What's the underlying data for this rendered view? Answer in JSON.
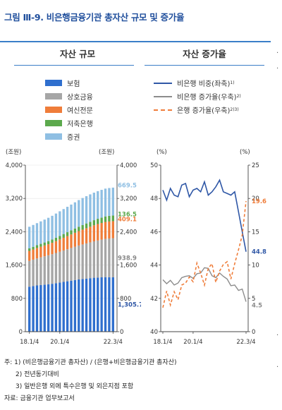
{
  "title": "그림 Ⅲ-9. 비은행금융기관 총자산 규모 및 증가율",
  "panels": {
    "left_title": "자산 규모",
    "right_title": "자산 증가율"
  },
  "legend_left": [
    {
      "label": "보험",
      "color": "#2f6fce"
    },
    {
      "label": "상호금융",
      "color": "#a6a6a6"
    },
    {
      "label": "여신전문",
      "color": "#ef7d3a"
    },
    {
      "label": "저축은행",
      "color": "#5ca94d"
    },
    {
      "label": "증권",
      "color": "#8fbfe3"
    }
  ],
  "legend_right": [
    {
      "label": "비은행 비중(좌축)",
      "sup": "1)",
      "color": "#2f57a6",
      "style": "solid"
    },
    {
      "label": "비은행 증가율(우축)",
      "sup": "2)",
      "color": "#8c8c8c",
      "style": "solid"
    },
    {
      "label": "은행 증가율(우축)",
      "sup": "2)3)",
      "color": "#ef7d3a",
      "style": "dashed"
    }
  ],
  "chart_data": [
    {
      "type": "bar",
      "stacked": true,
      "unit_left": "(조원)",
      "unit_right": "(조원)",
      "ylim": [
        0,
        4000
      ],
      "yticks": [
        "0",
        "800",
        "1,600",
        "2,400",
        "3,200",
        "4,000"
      ],
      "xticks": [
        "18.1/4",
        "20.1/4",
        "22.3/4"
      ],
      "series": [
        {
          "name": "보험",
          "values": [
            1080,
            1095,
            1110,
            1120,
            1130,
            1140,
            1150,
            1165,
            1180,
            1195,
            1210,
            1225,
            1240,
            1255,
            1265,
            1275,
            1285,
            1295,
            1300,
            1305,
            1310,
            1308,
            1305.7
          ]
        },
        {
          "name": "상호금융",
          "values": [
            620,
            635,
            650,
            665,
            680,
            695,
            710,
            725,
            740,
            755,
            770,
            785,
            800,
            815,
            830,
            845,
            860,
            875,
            890,
            905,
            920,
            930,
            938.9
          ]
        },
        {
          "name": "여신전문",
          "values": [
            240,
            245,
            250,
            255,
            260,
            265,
            275,
            285,
            295,
            305,
            315,
            325,
            335,
            345,
            355,
            365,
            375,
            385,
            395,
            400,
            405,
            408,
            409.1
          ]
        },
        {
          "name": "저축은행",
          "values": [
            60,
            63,
            66,
            69,
            72,
            75,
            78,
            82,
            86,
            90,
            94,
            98,
            102,
            106,
            110,
            114,
            118,
            122,
            126,
            130,
            133,
            135,
            136.5
          ]
        },
        {
          "name": "증권",
          "values": [
            520,
            525,
            530,
            540,
            550,
            560,
            570,
            580,
            590,
            600,
            610,
            620,
            630,
            640,
            650,
            655,
            660,
            662,
            664,
            666,
            668,
            669,
            669.5
          ]
        }
      ],
      "end_labels": [
        "669.5",
        "136.5",
        "409.1",
        "938.9",
        "1,305.7"
      ]
    },
    {
      "type": "line",
      "unit_left": "(%)",
      "unit_right": "(%)",
      "ylim_left": [
        40,
        50
      ],
      "ylim_right": [
        0,
        25
      ],
      "yticks_left": [
        "40",
        "42",
        "44",
        "46",
        "48",
        "50"
      ],
      "yticks_right": [
        "0",
        "5",
        "10",
        "15",
        "20",
        "25"
      ],
      "xticks": [
        "18.1/4",
        "20.1/4",
        "22.3/4"
      ],
      "series": [
        {
          "name": "비은행 비중(좌축)",
          "axis": "left",
          "values": [
            48.5,
            47.9,
            48.6,
            48.2,
            48.1,
            48.8,
            48.9,
            48.1,
            48.5,
            48.6,
            48.4,
            49.0,
            48.2,
            48.4,
            48.7,
            49.1,
            48.4,
            48.3,
            48.2,
            48.4,
            47.2,
            46.0,
            44.8
          ]
        },
        {
          "name": "비은행 증가율(우축)",
          "axis": "right",
          "values": [
            7.8,
            7.2,
            7.7,
            7.0,
            7.3,
            8.1,
            8.3,
            8.4,
            8.0,
            8.7,
            8.8,
            9.6,
            9.5,
            8.4,
            8.1,
            8.8,
            8.3,
            7.9,
            6.9,
            7.0,
            6.2,
            6.4,
            4.5
          ]
        },
        {
          "name": "은행 증가율(우축)",
          "axis": "right",
          "values": [
            3.6,
            6.1,
            4.0,
            6.0,
            4.8,
            7.0,
            7.3,
            8.2,
            7.5,
            10.3,
            8.8,
            7.0,
            9.5,
            10.2,
            7.4,
            9.1,
            10.1,
            10.5,
            7.9,
            10.2,
            12.3,
            14.5,
            19.6
          ]
        }
      ],
      "end_labels": [
        "19.6",
        "44.8",
        "4.5"
      ]
    }
  ],
  "notes": [
    "주: 1) (비은행금융기관 총자산) / (은행+비은행금융기관 총자산)",
    "2) 전년동기대비",
    "3) 일반은행 외에 특수은행 및 외은지점 포함",
    "자료: 금융기관 업무보고서"
  ],
  "edge_marks": {
    "m1": "·",
    "m2": "·",
    "m3": "·",
    "m4": "·"
  }
}
